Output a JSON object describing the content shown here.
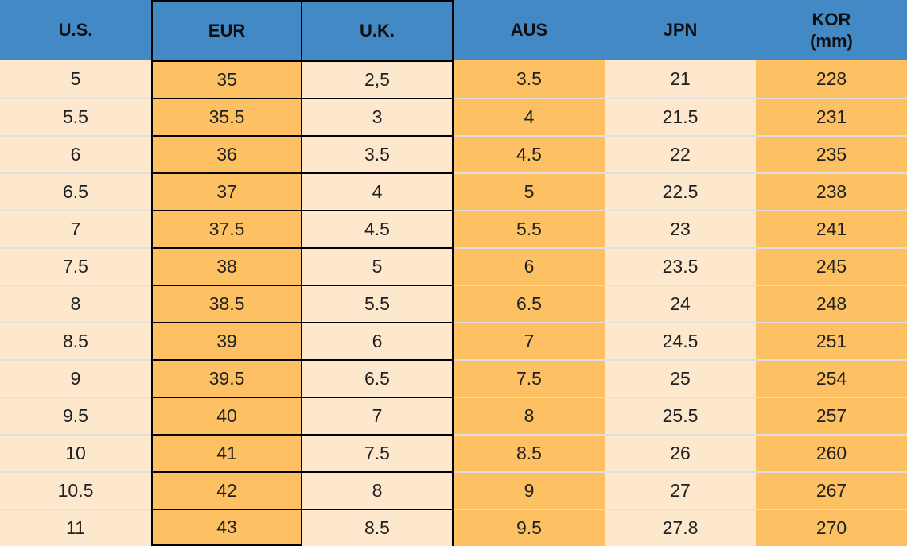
{
  "table": {
    "title": "shoe-size-conversion",
    "columns": [
      {
        "key": "us",
        "label": "U.S."
      },
      {
        "key": "eur",
        "label": "EUR"
      },
      {
        "key": "uk",
        "label": "U.K."
      },
      {
        "key": "aus",
        "label": "AUS"
      },
      {
        "key": "jpn",
        "label": "JPN"
      },
      {
        "key": "kor",
        "label": "KOR",
        "label2": "(mm)"
      }
    ],
    "rows": [
      [
        "5",
        "35",
        "2,5",
        "3.5",
        "21",
        "228"
      ],
      [
        "5.5",
        "35.5",
        "3",
        "4",
        "21.5",
        "231"
      ],
      [
        "6",
        "36",
        "3.5",
        "4.5",
        "22",
        "235"
      ],
      [
        "6.5",
        "37",
        "4",
        "5",
        "22.5",
        "238"
      ],
      [
        "7",
        "37.5",
        "4.5",
        "5.5",
        "23",
        "241"
      ],
      [
        "7.5",
        "38",
        "5",
        "6",
        "23.5",
        "245"
      ],
      [
        "8",
        "38.5",
        "5.5",
        "6.5",
        "24",
        "248"
      ],
      [
        "8.5",
        "39",
        "6",
        "7",
        "24.5",
        "251"
      ],
      [
        "9",
        "39.5",
        "6.5",
        "7.5",
        "25",
        "254"
      ],
      [
        "9.5",
        "40",
        "7",
        "8",
        "25.5",
        "257"
      ],
      [
        "10",
        "41",
        "7.5",
        "8.5",
        "26",
        "260"
      ],
      [
        "10.5",
        "42",
        "8",
        "9",
        "27",
        "267"
      ],
      [
        "11",
        "43",
        "8.5",
        "9.5",
        "27.8",
        "270"
      ]
    ]
  },
  "colors": {
    "header_blue": "#4289C5",
    "cell_orange": "#FDC164",
    "cell_cream": "#FDE8CD",
    "row_separator": "#DFDFDF",
    "border_black": "#000000"
  }
}
